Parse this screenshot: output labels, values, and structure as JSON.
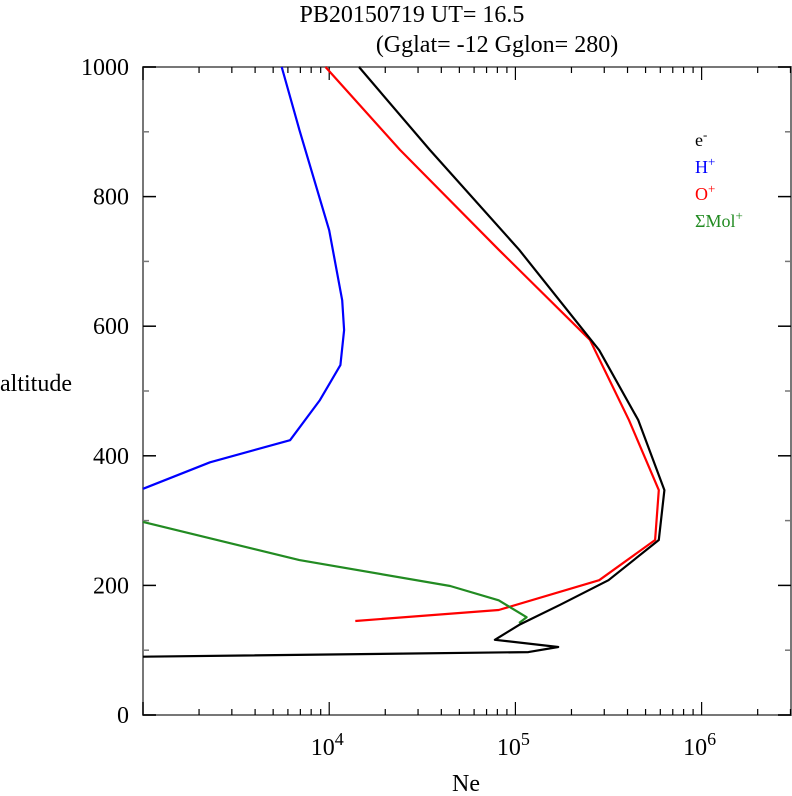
{
  "chart_data": {
    "type": "line",
    "title_line1": "PB20150719   UT=  16.5",
    "title_line2": "(Gglat= -12   Gglon=  280)",
    "xlabel": "Ne",
    "ylabel": "altitude",
    "x_scale": "log",
    "xlim_log10": [
      3.0,
      6.48
    ],
    "ylim": [
      0,
      1000
    ],
    "x_ticks": [
      {
        "base": "10",
        "exp": "4",
        "log10": 4
      },
      {
        "base": "10",
        "exp": "5",
        "log10": 5
      },
      {
        "base": "10",
        "exp": "6",
        "log10": 6
      }
    ],
    "y_ticks": [
      "0",
      "200",
      "400",
      "600",
      "800",
      "1000"
    ],
    "legend_position": "top-right",
    "series": [
      {
        "name": "e-",
        "label_base": "e",
        "label_sup": "-",
        "color": "#000000",
        "log10_ne": [
          4.16,
          4.54,
          5.02,
          5.45,
          5.66,
          5.8,
          5.77,
          5.5,
          5.24,
          5.02,
          4.89,
          5.23,
          5.07,
          3.0
        ],
        "altitude": [
          1000,
          872,
          718,
          563,
          455,
          347,
          270,
          208,
          170,
          139,
          116,
          105,
          97,
          90
        ]
      },
      {
        "name": "H+",
        "label_base": "H",
        "label_sup": "+",
        "color": "#0000ff",
        "log10_ne": [
          3.745,
          3.84,
          4.0,
          4.07,
          4.08,
          4.06,
          3.95,
          3.79,
          3.36,
          3.0
        ],
        "altitude": [
          1000,
          903,
          748,
          640,
          594,
          540,
          486,
          424,
          390,
          349
        ]
      },
      {
        "name": "O+",
        "label_base": "O",
        "label_sup": "+",
        "color": "#ff0000",
        "log10_ne": [
          3.98,
          4.38,
          4.91,
          5.4,
          5.61,
          5.77,
          5.75,
          5.45,
          4.91,
          4.14
        ],
        "altitude": [
          1000,
          872,
          718,
          579,
          455,
          347,
          270,
          208,
          162,
          145
        ]
      },
      {
        "name": "ΣMol+",
        "label_base": "ΣMol",
        "label_sup": "+",
        "color": "#228b22",
        "log10_ne": [
          3.0,
          3.84,
          4.65,
          4.91,
          5.06,
          5.02
        ],
        "altitude": [
          298,
          239,
          199,
          177,
          151,
          142
        ]
      }
    ]
  }
}
